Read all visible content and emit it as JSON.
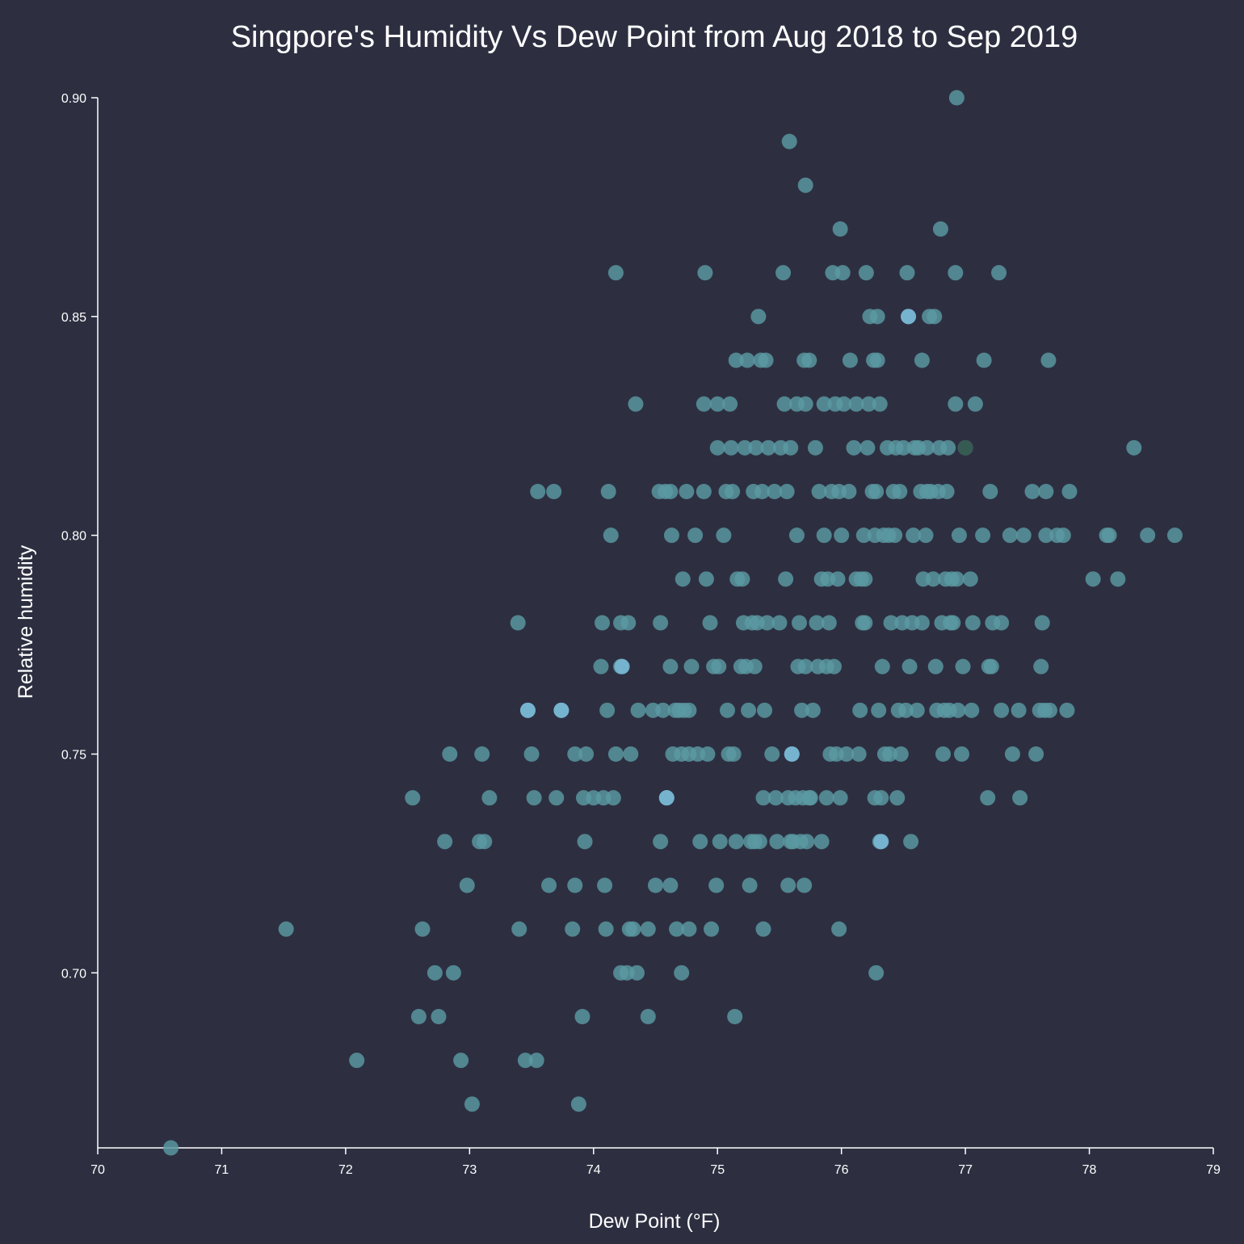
{
  "chart_data": {
    "type": "scatter",
    "title": "Singpore's Humidity Vs Dew Point from Aug 2018 to Sep 2019",
    "xlabel": "Dew Point (°F)",
    "ylabel": "Relative humidity",
    "xlim": [
      70,
      79
    ],
    "ylim": [
      0.66,
      0.9
    ],
    "xticks": [
      "70",
      "71",
      "72",
      "73",
      "74",
      "75",
      "76",
      "77",
      "78",
      "79"
    ],
    "yticks": [
      "0.70",
      "0.75",
      "0.80",
      "0.85",
      "0.90"
    ],
    "grid": false,
    "colors": {
      "background": "#2d2f41",
      "point": "#5a9aa2",
      "point_light": "#7ab8d6",
      "text": "#ffffff"
    },
    "points": [
      [
        70.59,
        0.66
      ],
      [
        71.52,
        0.71
      ],
      [
        72.09,
        0.68
      ],
      [
        72.54,
        0.74
      ],
      [
        72.59,
        0.69
      ],
      [
        72.62,
        0.71
      ],
      [
        72.72,
        0.7
      ],
      [
        72.75,
        0.69
      ],
      [
        72.8,
        0.73
      ],
      [
        72.84,
        0.75
      ],
      [
        72.87,
        0.7
      ],
      [
        72.93,
        0.68
      ],
      [
        72.98,
        0.72
      ],
      [
        73.02,
        0.67
      ],
      [
        73.08,
        0.73
      ],
      [
        73.1,
        0.75
      ],
      [
        73.12,
        0.73
      ],
      [
        73.16,
        0.74
      ],
      [
        73.39,
        0.78
      ],
      [
        73.4,
        0.71
      ],
      [
        73.45,
        0.68
      ],
      [
        73.47,
        0.76
      ],
      [
        73.5,
        0.75
      ],
      [
        73.52,
        0.74
      ],
      [
        73.54,
        0.68
      ],
      [
        73.55,
        0.81
      ],
      [
        73.64,
        0.72
      ],
      [
        73.68,
        0.81
      ],
      [
        73.7,
        0.74
      ],
      [
        73.74,
        0.76
      ],
      [
        73.83,
        0.71
      ],
      [
        73.85,
        0.72
      ],
      [
        73.85,
        0.75
      ],
      [
        73.88,
        0.67
      ],
      [
        73.91,
        0.69
      ],
      [
        73.92,
        0.74
      ],
      [
        73.93,
        0.73
      ],
      [
        73.94,
        0.75
      ],
      [
        74.0,
        0.74
      ],
      [
        74.06,
        0.77
      ],
      [
        74.07,
        0.78
      ],
      [
        74.08,
        0.74
      ],
      [
        74.09,
        0.72
      ],
      [
        74.1,
        0.71
      ],
      [
        74.11,
        0.76
      ],
      [
        74.12,
        0.81
      ],
      [
        74.14,
        0.8
      ],
      [
        74.16,
        0.74
      ],
      [
        74.18,
        0.86
      ],
      [
        74.18,
        0.75
      ],
      [
        74.22,
        0.78
      ],
      [
        74.22,
        0.77
      ],
      [
        74.22,
        0.7
      ],
      [
        74.27,
        0.7
      ],
      [
        74.28,
        0.78
      ],
      [
        74.29,
        0.71
      ],
      [
        74.3,
        0.75
      ],
      [
        74.32,
        0.71
      ],
      [
        74.34,
        0.83
      ],
      [
        74.35,
        0.7
      ],
      [
        74.36,
        0.76
      ],
      [
        74.44,
        0.71
      ],
      [
        74.44,
        0.69
      ],
      [
        74.48,
        0.76
      ],
      [
        74.5,
        0.72
      ],
      [
        74.53,
        0.81
      ],
      [
        74.54,
        0.78
      ],
      [
        74.54,
        0.73
      ],
      [
        74.56,
        0.76
      ],
      [
        74.58,
        0.81
      ],
      [
        74.59,
        0.74
      ],
      [
        74.62,
        0.81
      ],
      [
        74.62,
        0.77
      ],
      [
        74.62,
        0.72
      ],
      [
        74.63,
        0.8
      ],
      [
        74.64,
        0.75
      ],
      [
        74.66,
        0.76
      ],
      [
        74.67,
        0.71
      ],
      [
        74.69,
        0.76
      ],
      [
        74.71,
        0.7
      ],
      [
        74.71,
        0.75
      ],
      [
        74.72,
        0.79
      ],
      [
        74.73,
        0.76
      ],
      [
        74.75,
        0.81
      ],
      [
        74.77,
        0.76
      ],
      [
        74.77,
        0.75
      ],
      [
        74.77,
        0.71
      ],
      [
        74.79,
        0.77
      ],
      [
        74.82,
        0.8
      ],
      [
        74.84,
        0.75
      ],
      [
        74.86,
        0.73
      ],
      [
        74.89,
        0.83
      ],
      [
        74.89,
        0.81
      ],
      [
        74.9,
        0.86
      ],
      [
        74.91,
        0.79
      ],
      [
        74.92,
        0.75
      ],
      [
        74.94,
        0.78
      ],
      [
        74.95,
        0.71
      ],
      [
        74.97,
        0.77
      ],
      [
        74.99,
        0.72
      ],
      [
        75.0,
        0.82
      ],
      [
        75.0,
        0.83
      ],
      [
        75.01,
        0.77
      ],
      [
        75.02,
        0.73
      ],
      [
        75.05,
        0.8
      ],
      [
        75.07,
        0.81
      ],
      [
        75.08,
        0.76
      ],
      [
        75.09,
        0.75
      ],
      [
        75.1,
        0.83
      ],
      [
        75.11,
        0.82
      ],
      [
        75.12,
        0.81
      ],
      [
        75.13,
        0.75
      ],
      [
        75.14,
        0.69
      ],
      [
        75.15,
        0.73
      ],
      [
        75.15,
        0.84
      ],
      [
        75.16,
        0.79
      ],
      [
        75.19,
        0.77
      ],
      [
        75.2,
        0.79
      ],
      [
        75.21,
        0.78
      ],
      [
        75.22,
        0.82
      ],
      [
        75.23,
        0.77
      ],
      [
        75.24,
        0.84
      ],
      [
        75.25,
        0.76
      ],
      [
        75.26,
        0.72
      ],
      [
        75.27,
        0.73
      ],
      [
        75.28,
        0.78
      ],
      [
        75.29,
        0.81
      ],
      [
        75.3,
        0.77
      ],
      [
        75.3,
        0.73
      ],
      [
        75.31,
        0.82
      ],
      [
        75.32,
        0.78
      ],
      [
        75.33,
        0.85
      ],
      [
        75.34,
        0.73
      ],
      [
        75.35,
        0.84
      ],
      [
        75.36,
        0.81
      ],
      [
        75.37,
        0.74
      ],
      [
        75.37,
        0.71
      ],
      [
        75.38,
        0.76
      ],
      [
        75.39,
        0.84
      ],
      [
        75.4,
        0.78
      ],
      [
        75.41,
        0.82
      ],
      [
        75.44,
        0.75
      ],
      [
        75.46,
        0.81
      ],
      [
        75.47,
        0.74
      ],
      [
        75.48,
        0.73
      ],
      [
        75.5,
        0.78
      ],
      [
        75.51,
        0.82
      ],
      [
        75.53,
        0.86
      ],
      [
        75.54,
        0.83
      ],
      [
        75.55,
        0.79
      ],
      [
        75.56,
        0.81
      ],
      [
        75.57,
        0.74
      ],
      [
        75.57,
        0.72
      ],
      [
        75.58,
        0.89
      ],
      [
        75.59,
        0.73
      ],
      [
        75.59,
        0.82
      ],
      [
        75.6,
        0.75
      ],
      [
        75.61,
        0.73
      ],
      [
        75.63,
        0.74
      ],
      [
        75.64,
        0.8
      ],
      [
        75.64,
        0.83
      ],
      [
        75.65,
        0.77
      ],
      [
        75.66,
        0.78
      ],
      [
        75.67,
        0.73
      ],
      [
        75.68,
        0.76
      ],
      [
        75.69,
        0.74
      ],
      [
        75.7,
        0.72
      ],
      [
        75.7,
        0.84
      ],
      [
        75.71,
        0.88
      ],
      [
        75.71,
        0.77
      ],
      [
        75.71,
        0.83
      ],
      [
        75.72,
        0.73
      ],
      [
        75.74,
        0.84
      ],
      [
        75.74,
        0.74
      ],
      [
        75.75,
        0.74
      ],
      [
        75.77,
        0.76
      ],
      [
        75.79,
        0.82
      ],
      [
        75.8,
        0.78
      ],
      [
        75.81,
        0.77
      ],
      [
        75.82,
        0.81
      ],
      [
        75.84,
        0.79
      ],
      [
        75.84,
        0.73
      ],
      [
        75.86,
        0.8
      ],
      [
        75.86,
        0.83
      ],
      [
        75.88,
        0.74
      ],
      [
        75.88,
        0.77
      ],
      [
        75.89,
        0.79
      ],
      [
        75.9,
        0.78
      ],
      [
        75.91,
        0.75
      ],
      [
        75.92,
        0.81
      ],
      [
        75.93,
        0.86
      ],
      [
        75.94,
        0.77
      ],
      [
        75.95,
        0.83
      ],
      [
        75.96,
        0.75
      ],
      [
        75.97,
        0.79
      ],
      [
        75.98,
        0.71
      ],
      [
        75.98,
        0.81
      ],
      [
        75.99,
        0.87
      ],
      [
        75.99,
        0.74
      ],
      [
        76.0,
        0.8
      ],
      [
        76.01,
        0.86
      ],
      [
        76.02,
        0.83
      ],
      [
        76.04,
        0.75
      ],
      [
        76.06,
        0.81
      ],
      [
        76.07,
        0.84
      ],
      [
        76.1,
        0.82
      ],
      [
        76.12,
        0.79
      ],
      [
        76.12,
        0.83
      ],
      [
        76.14,
        0.75
      ],
      [
        76.15,
        0.76
      ],
      [
        76.16,
        0.79
      ],
      [
        76.17,
        0.78
      ],
      [
        76.18,
        0.8
      ],
      [
        76.19,
        0.79
      ],
      [
        76.19,
        0.78
      ],
      [
        76.2,
        0.86
      ],
      [
        76.21,
        0.82
      ],
      [
        76.22,
        0.83
      ],
      [
        76.23,
        0.85
      ],
      [
        76.25,
        0.81
      ],
      [
        76.26,
        0.84
      ],
      [
        76.27,
        0.74
      ],
      [
        76.27,
        0.8
      ],
      [
        76.28,
        0.81
      ],
      [
        76.28,
        0.7
      ],
      [
        76.29,
        0.84
      ],
      [
        76.29,
        0.85
      ],
      [
        76.3,
        0.76
      ],
      [
        76.31,
        0.73
      ],
      [
        76.31,
        0.83
      ],
      [
        76.32,
        0.74
      ],
      [
        76.33,
        0.77
      ],
      [
        76.34,
        0.8
      ],
      [
        76.35,
        0.75
      ],
      [
        76.37,
        0.82
      ],
      [
        76.38,
        0.8
      ],
      [
        76.39,
        0.75
      ],
      [
        76.4,
        0.78
      ],
      [
        76.42,
        0.81
      ],
      [
        76.43,
        0.8
      ],
      [
        76.44,
        0.82
      ],
      [
        76.45,
        0.74
      ],
      [
        76.46,
        0.76
      ],
      [
        76.47,
        0.81
      ],
      [
        76.48,
        0.75
      ],
      [
        76.49,
        0.78
      ],
      [
        76.5,
        0.82
      ],
      [
        76.52,
        0.76
      ],
      [
        76.53,
        0.86
      ],
      [
        76.54,
        0.85
      ],
      [
        76.55,
        0.77
      ],
      [
        76.56,
        0.73
      ],
      [
        76.57,
        0.78
      ],
      [
        76.58,
        0.8
      ],
      [
        76.59,
        0.82
      ],
      [
        76.61,
        0.76
      ],
      [
        76.62,
        0.82
      ],
      [
        76.64,
        0.81
      ],
      [
        76.65,
        0.84
      ],
      [
        76.65,
        0.78
      ],
      [
        76.66,
        0.79
      ],
      [
        76.68,
        0.8
      ],
      [
        76.69,
        0.82
      ],
      [
        76.69,
        0.81
      ],
      [
        76.71,
        0.85
      ],
      [
        76.72,
        0.81
      ],
      [
        76.74,
        0.79
      ],
      [
        76.75,
        0.85
      ],
      [
        76.76,
        0.77
      ],
      [
        76.77,
        0.76
      ],
      [
        76.78,
        0.81
      ],
      [
        76.79,
        0.82
      ],
      [
        76.8,
        0.87
      ],
      [
        76.81,
        0.78
      ],
      [
        76.82,
        0.75
      ],
      [
        76.83,
        0.76
      ],
      [
        76.84,
        0.79
      ],
      [
        76.85,
        0.81
      ],
      [
        76.86,
        0.82
      ],
      [
        76.87,
        0.76
      ],
      [
        76.88,
        0.78
      ],
      [
        76.89,
        0.79
      ],
      [
        76.9,
        0.78
      ],
      [
        76.92,
        0.83
      ],
      [
        76.92,
        0.86
      ],
      [
        76.93,
        0.9
      ],
      [
        76.93,
        0.79
      ],
      [
        76.94,
        0.76
      ],
      [
        76.95,
        0.8
      ],
      [
        76.97,
        0.75
      ],
      [
        76.98,
        0.77
      ],
      [
        77.0,
        0.82
      ],
      [
        77.04,
        0.79
      ],
      [
        77.05,
        0.76
      ],
      [
        77.06,
        0.78
      ],
      [
        77.08,
        0.83
      ],
      [
        77.14,
        0.8
      ],
      [
        77.15,
        0.84
      ],
      [
        77.18,
        0.74
      ],
      [
        77.19,
        0.77
      ],
      [
        77.2,
        0.81
      ],
      [
        77.21,
        0.77
      ],
      [
        77.22,
        0.78
      ],
      [
        77.27,
        0.86
      ],
      [
        77.29,
        0.76
      ],
      [
        77.29,
        0.78
      ],
      [
        77.36,
        0.8
      ],
      [
        77.38,
        0.75
      ],
      [
        77.43,
        0.76
      ],
      [
        77.44,
        0.74
      ],
      [
        77.47,
        0.8
      ],
      [
        77.54,
        0.81
      ],
      [
        77.57,
        0.75
      ],
      [
        77.6,
        0.76
      ],
      [
        77.61,
        0.77
      ],
      [
        77.62,
        0.78
      ],
      [
        77.64,
        0.76
      ],
      [
        77.65,
        0.81
      ],
      [
        77.65,
        0.8
      ],
      [
        77.67,
        0.84
      ],
      [
        77.68,
        0.76
      ],
      [
        77.74,
        0.8
      ],
      [
        77.79,
        0.8
      ],
      [
        77.82,
        0.76
      ],
      [
        77.84,
        0.81
      ],
      [
        78.03,
        0.79
      ],
      [
        78.14,
        0.8
      ],
      [
        78.16,
        0.8
      ],
      [
        78.23,
        0.79
      ],
      [
        78.36,
        0.82
      ],
      [
        78.47,
        0.8
      ],
      [
        78.69,
        0.8
      ]
    ],
    "highlight_points": [
      [
        73.47,
        0.76
      ],
      [
        73.74,
        0.76
      ],
      [
        74.59,
        0.74
      ],
      [
        76.32,
        0.73
      ],
      [
        76.54,
        0.85
      ],
      [
        74.23,
        0.77
      ],
      [
        75.6,
        0.75
      ]
    ],
    "dark_points": [
      [
        77.0,
        0.82
      ]
    ]
  }
}
